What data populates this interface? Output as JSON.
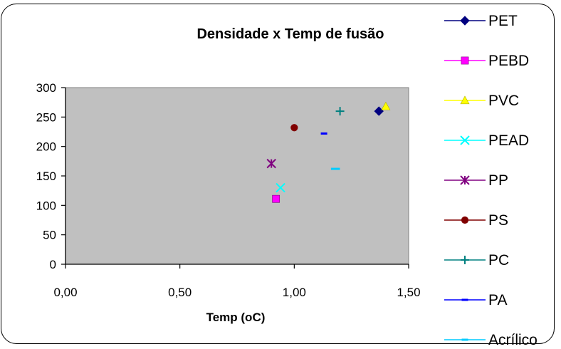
{
  "chart_data": {
    "type": "scatter",
    "title": "Densidade x Temp de fusão",
    "xlabel": "Temp (oC)",
    "ylabel": "",
    "xlim": [
      0,
      1.5
    ],
    "ylim": [
      0,
      300
    ],
    "xticks": [
      "0,00",
      "0,50",
      "1,00",
      "1,50"
    ],
    "yticks": [
      "0",
      "50",
      "100",
      "150",
      "200",
      "250",
      "300"
    ],
    "grid": false,
    "legend_position": "right",
    "plot_background": "#c0c0c0",
    "series": [
      {
        "name": "PET",
        "marker": "diamond",
        "color": "#000080",
        "points": [
          [
            1.37,
            260
          ]
        ]
      },
      {
        "name": "PEBD",
        "marker": "square",
        "color": "#ff00ff",
        "points": [
          [
            0.92,
            111
          ]
        ]
      },
      {
        "name": "PVC",
        "marker": "triangle",
        "color": "#ffff00",
        "points": [
          [
            1.4,
            268
          ]
        ]
      },
      {
        "name": "PEAD",
        "marker": "x",
        "color": "#00ffff",
        "points": [
          [
            0.94,
            130
          ]
        ]
      },
      {
        "name": "PP",
        "marker": "star",
        "color": "#800080",
        "points": [
          [
            0.9,
            171
          ]
        ]
      },
      {
        "name": "PS",
        "marker": "circle",
        "color": "#800000",
        "points": [
          [
            1.0,
            232
          ]
        ]
      },
      {
        "name": "PC",
        "marker": "plus",
        "color": "#008080",
        "points": [
          [
            1.2,
            260
          ]
        ]
      },
      {
        "name": "PA",
        "marker": "dash",
        "color": "#0000ff",
        "points": [
          [
            1.13,
            222
          ]
        ]
      },
      {
        "name": "Acrílico",
        "marker": "dash",
        "color": "#00ccff",
        "points": [
          [
            1.18,
            162
          ]
        ]
      }
    ]
  }
}
